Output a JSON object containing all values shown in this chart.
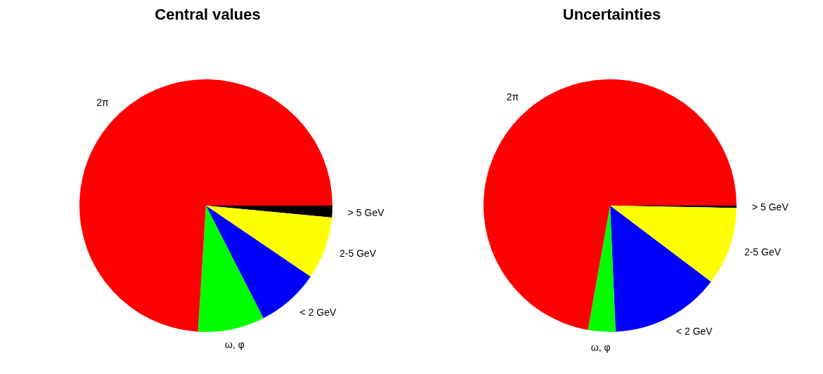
{
  "chart_data": [
    {
      "type": "pie",
      "title": "Central values",
      "categories": [
        "> 5 GeV",
        "2-5 GeV",
        "< 2 GeV",
        "ω, φ",
        "2π"
      ],
      "values": [
        1.5,
        8,
        8,
        8.5,
        74
      ],
      "colors": [
        "#000000",
        "#ffff00",
        "#0000ff",
        "#00ff00",
        "#ff0000"
      ],
      "legend": false
    },
    {
      "type": "pie",
      "title": "Uncertainties",
      "categories": [
        "> 5 GeV",
        "2-5 GeV",
        "< 2 GeV",
        "ω, φ",
        "2π"
      ],
      "values": [
        0.3,
        10,
        14,
        3.5,
        72.2
      ],
      "colors": [
        "#000000",
        "#ffff00",
        "#0000ff",
        "#00ff00",
        "#ff0000"
      ],
      "legend": false
    }
  ]
}
